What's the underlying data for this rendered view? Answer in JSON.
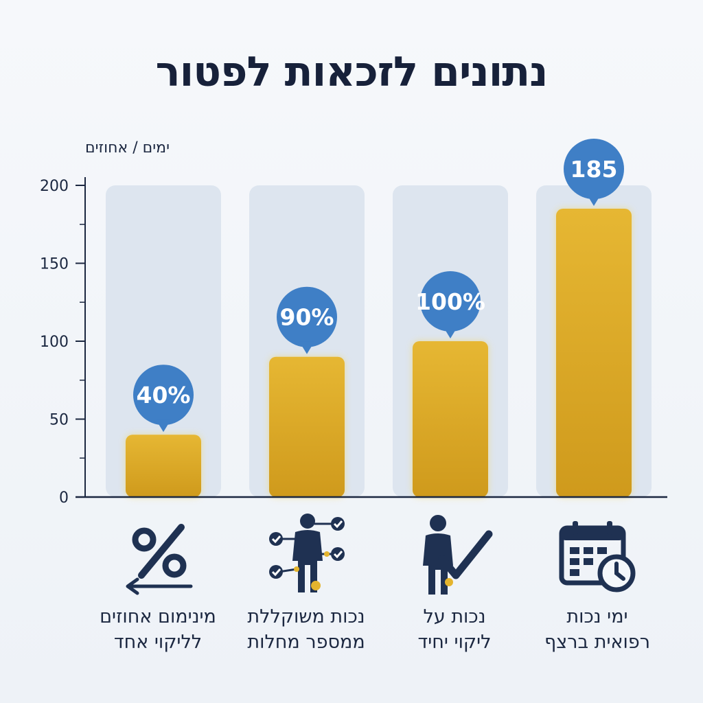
{
  "chart_data": {
    "type": "bar",
    "title": "נתונים לזכאות לפטור",
    "ylabel": "ימים / אחוזים",
    "ylim": [
      0,
      200
    ],
    "yticks": [
      "0",
      "50",
      "100",
      "150",
      "200"
    ],
    "grid": false,
    "categories": [
      {
        "lines": [
          "מינימום אחוזים",
          "לליקוי אחד"
        ],
        "icon": "percent-arrow-icon"
      },
      {
        "lines": [
          "נכות משוקללת",
          "ממספר מחלות"
        ],
        "icon": "person-connections-icon"
      },
      {
        "lines": [
          "נכות על",
          "ליקוי יחיד"
        ],
        "icon": "person-check-icon"
      },
      {
        "lines": [
          "ימי נכות",
          "רפואית ברצף"
        ],
        "icon": "calendar-clock-icon"
      }
    ],
    "values": [
      40,
      90,
      100,
      185
    ],
    "data_labels": [
      "40%",
      "90%",
      "100%",
      "185"
    ]
  },
  "colors": {
    "bar_top": "#e4b42e",
    "bar_bottom": "#cf9a1c",
    "bar_track": "#dde5ef",
    "bubble": "#3f7fc6",
    "axis": "#1b2740",
    "icon": "#1f3152",
    "accent_dot": "#e4b42e"
  }
}
